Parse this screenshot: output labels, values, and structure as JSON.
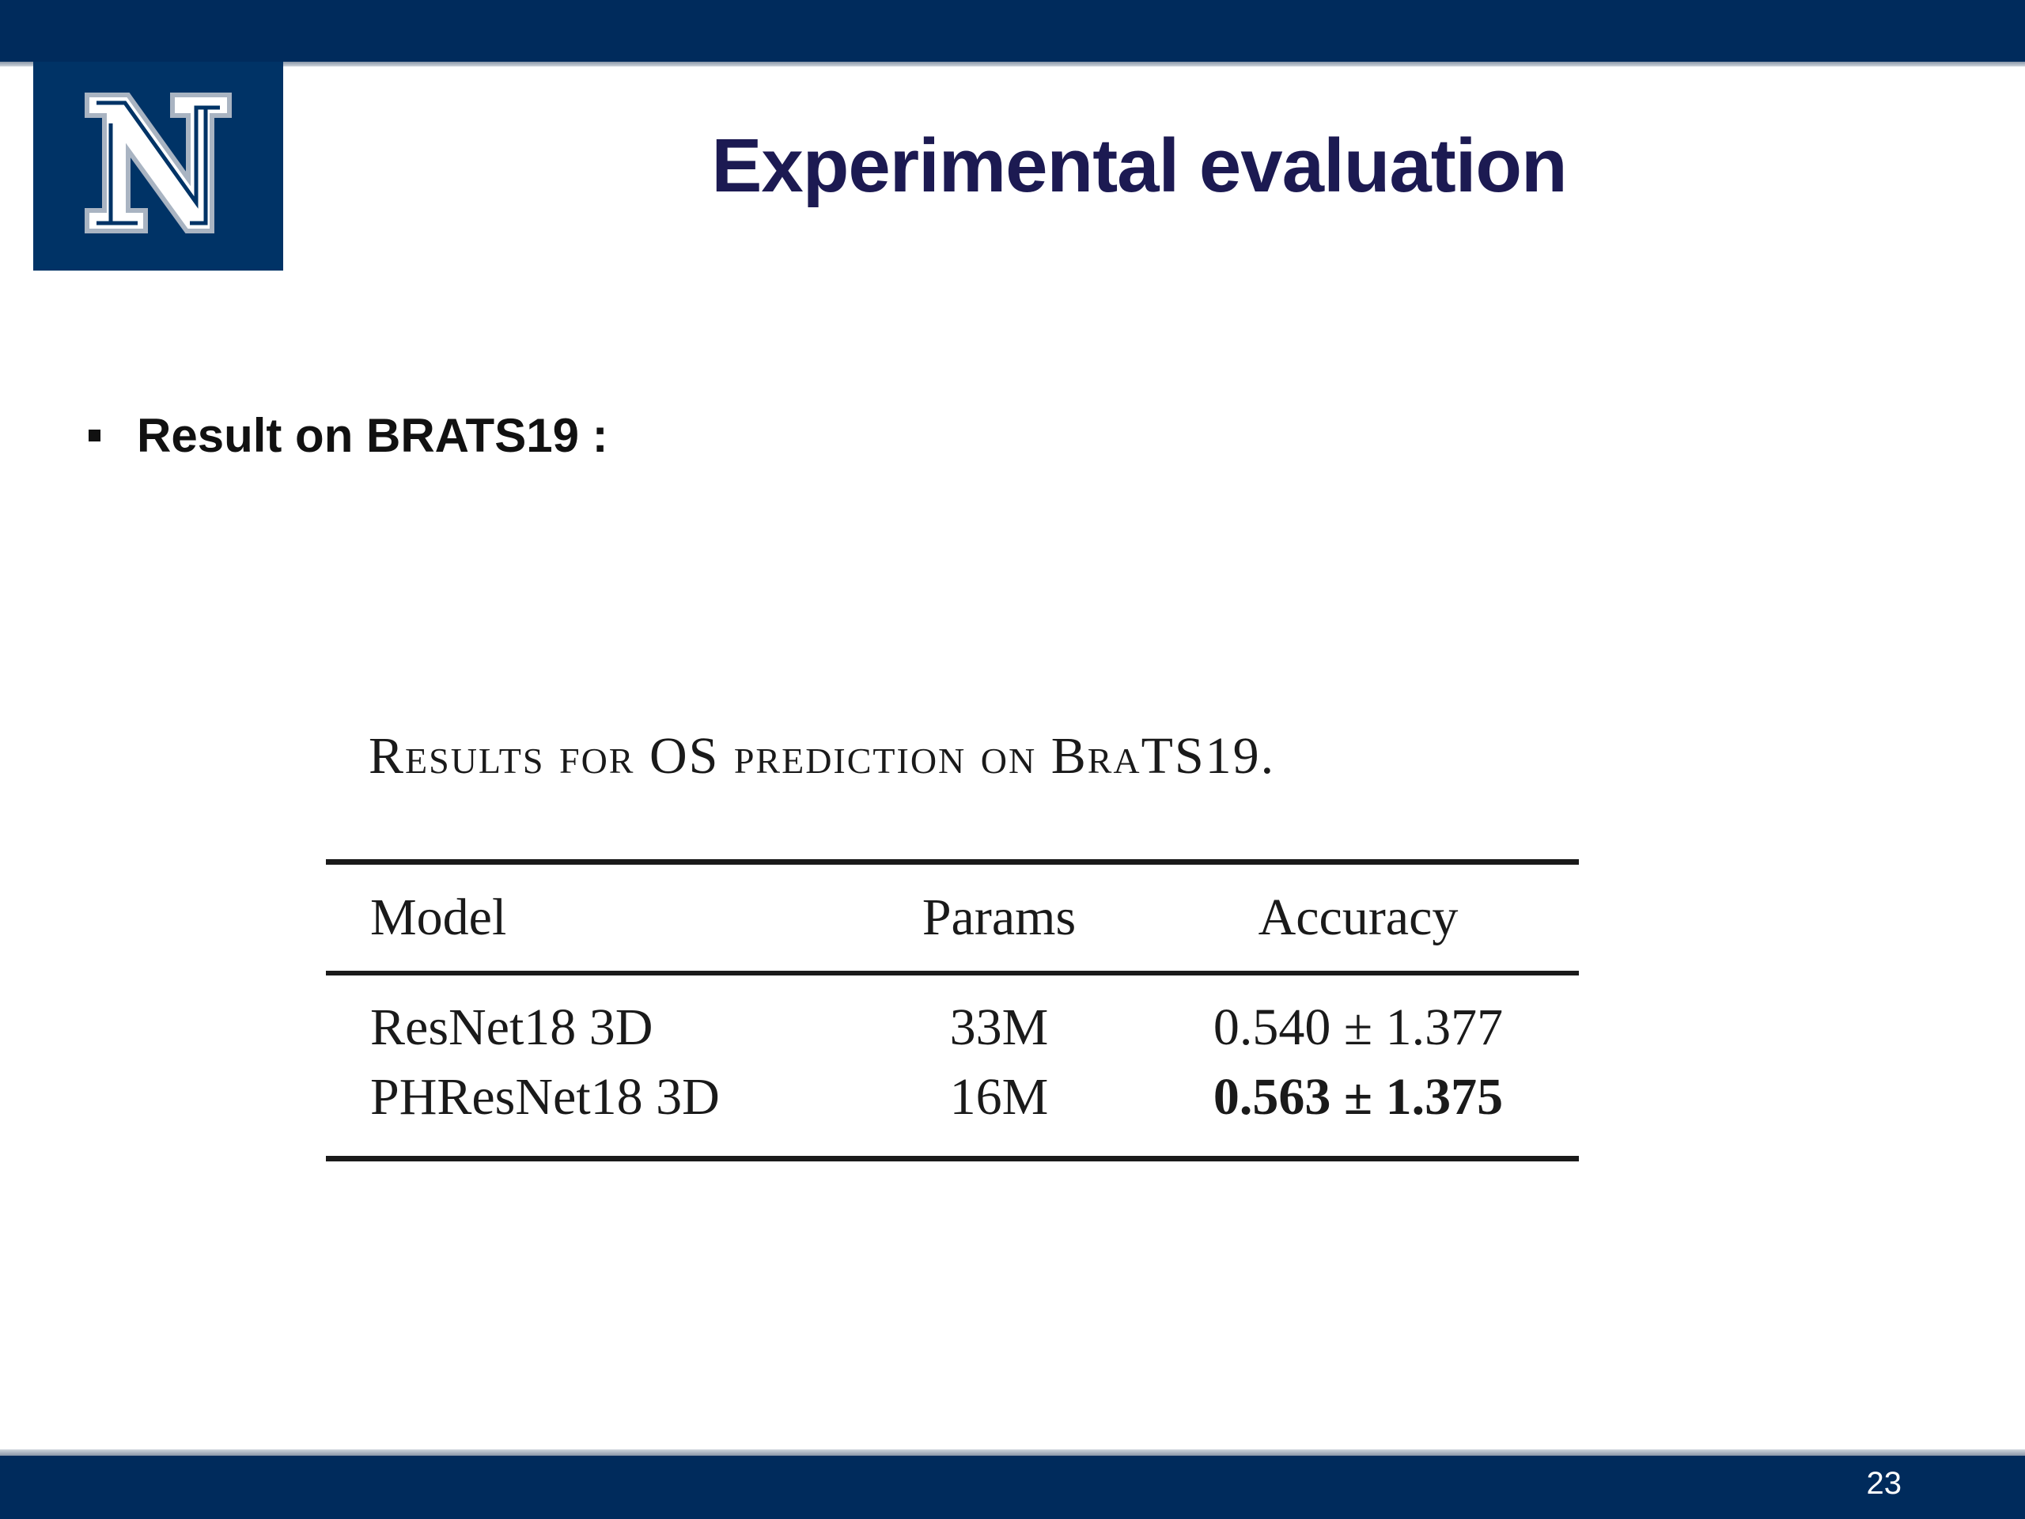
{
  "slide": {
    "title": "Experimental evaluation",
    "logo_icon": "university-n-logo",
    "bullet": "Result on BRATS19 :",
    "page_number": "23"
  },
  "table": {
    "caption": "Results for OS prediction on BraTS19.",
    "headers": {
      "model": "Model",
      "params": "Params",
      "accuracy": "Accuracy"
    },
    "rows": [
      {
        "model": "ResNet18 3D",
        "params": "33M",
        "accuracy": "0.540 ± 1.377",
        "bold": false
      },
      {
        "model": "PHResNet18 3D",
        "params": "16M",
        "accuracy": "0.563 ± 1.375",
        "bold": true
      }
    ]
  },
  "colors": {
    "brand_navy": "#002b5c",
    "title_color": "#1c1a52"
  }
}
